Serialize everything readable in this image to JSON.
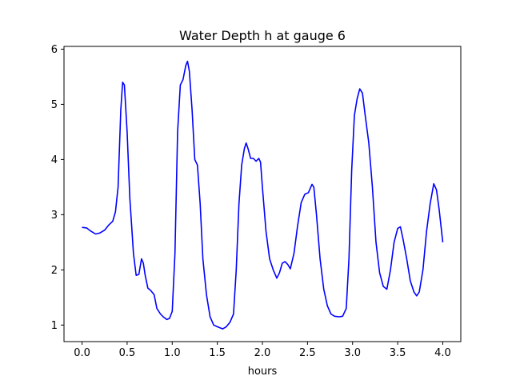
{
  "chart_data": {
    "type": "line",
    "title": "Water Depth h at gauge 6",
    "xlabel": "hours",
    "ylabel": "",
    "xlim": [
      -0.2,
      4.2
    ],
    "ylim": [
      0.7,
      6.05
    ],
    "xticks": [
      "0.0",
      "0.5",
      "1.0",
      "1.5",
      "2.0",
      "2.5",
      "3.0",
      "3.5",
      "4.0"
    ],
    "yticks": [
      "1",
      "2",
      "3",
      "4",
      "5",
      "6"
    ],
    "grid": false,
    "legend": "none",
    "series": [
      {
        "color": "#0000ff",
        "x": [
          0.0,
          0.05,
          0.1,
          0.15,
          0.2,
          0.25,
          0.3,
          0.34,
          0.37,
          0.4,
          0.43,
          0.45,
          0.47,
          0.5,
          0.53,
          0.57,
          0.6,
          0.63,
          0.66,
          0.68,
          0.7,
          0.73,
          0.76,
          0.8,
          0.83,
          0.87,
          0.9,
          0.94,
          0.97,
          1.0,
          1.03,
          1.06,
          1.09,
          1.12,
          1.15,
          1.17,
          1.19,
          1.22,
          1.25,
          1.28,
          1.31,
          1.34,
          1.38,
          1.42,
          1.46,
          1.5,
          1.53,
          1.56,
          1.6,
          1.64,
          1.68,
          1.71,
          1.74,
          1.77,
          1.8,
          1.82,
          1.84,
          1.87,
          1.9,
          1.93,
          1.96,
          1.98,
          2.0,
          2.04,
          2.08,
          2.12,
          2.16,
          2.19,
          2.22,
          2.25,
          2.28,
          2.31,
          2.35,
          2.39,
          2.43,
          2.47,
          2.51,
          2.55,
          2.57,
          2.6,
          2.64,
          2.68,
          2.72,
          2.76,
          2.8,
          2.85,
          2.89,
          2.93,
          2.96,
          2.99,
          3.02,
          3.05,
          3.08,
          3.11,
          3.14,
          3.18,
          3.22,
          3.26,
          3.3,
          3.34,
          3.38,
          3.42,
          3.46,
          3.5,
          3.53,
          3.56,
          3.6,
          3.64,
          3.68,
          3.71,
          3.74,
          3.78,
          3.82,
          3.86,
          3.9,
          3.93,
          3.96,
          4.0
        ],
        "y": [
          2.77,
          2.76,
          2.7,
          2.65,
          2.67,
          2.72,
          2.82,
          2.88,
          3.05,
          3.5,
          4.9,
          5.4,
          5.35,
          4.5,
          3.3,
          2.3,
          1.9,
          1.92,
          2.2,
          2.12,
          1.9,
          1.67,
          1.63,
          1.55,
          1.3,
          1.2,
          1.15,
          1.1,
          1.12,
          1.25,
          2.3,
          4.5,
          5.35,
          5.45,
          5.7,
          5.78,
          5.6,
          4.9,
          4.0,
          3.9,
          3.2,
          2.2,
          1.55,
          1.15,
          1.0,
          0.97,
          0.95,
          0.93,
          0.97,
          1.05,
          1.2,
          2.0,
          3.2,
          3.9,
          4.2,
          4.3,
          4.2,
          4.02,
          4.02,
          3.97,
          4.02,
          3.95,
          3.5,
          2.7,
          2.2,
          2.0,
          1.85,
          1.95,
          2.12,
          2.15,
          2.1,
          2.02,
          2.3,
          2.8,
          3.22,
          3.37,
          3.4,
          3.55,
          3.5,
          3.0,
          2.2,
          1.65,
          1.35,
          1.2,
          1.16,
          1.15,
          1.16,
          1.3,
          2.2,
          3.8,
          4.8,
          5.1,
          5.28,
          5.2,
          4.8,
          4.3,
          3.5,
          2.5,
          1.95,
          1.7,
          1.65,
          2.0,
          2.5,
          2.75,
          2.78,
          2.55,
          2.2,
          1.8,
          1.6,
          1.53,
          1.6,
          2.0,
          2.7,
          3.2,
          3.56,
          3.45,
          3.1,
          2.5
        ]
      }
    ]
  }
}
